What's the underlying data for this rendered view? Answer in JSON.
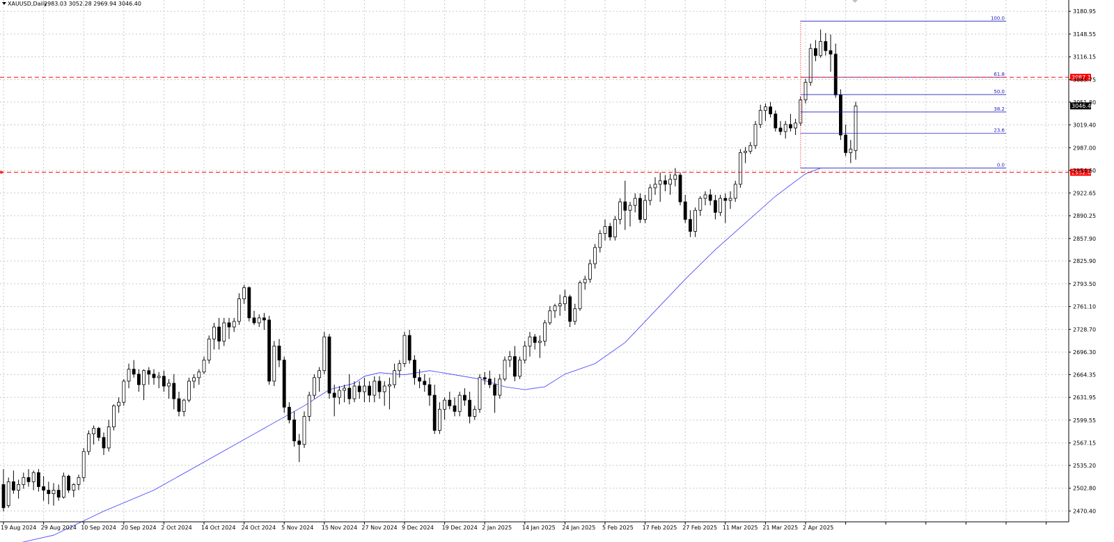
{
  "header": {
    "symbol": "XAUUSD,Daily",
    "ohlc": "2983.03 3052.28 2969.94 3046.40"
  },
  "colors": {
    "background": "#ffffff",
    "grid": "#c8c8c8",
    "bull_fill": "#ffffff",
    "bear_fill": "#000000",
    "candle_outline": "#000000",
    "moving_average": "#3c3cff",
    "fibonacci": "#2020c0",
    "support_resistance": "#ff0000",
    "current_price_tag": "#000000"
  },
  "chart_data": {
    "type": "candlestick",
    "symbol": "XAUUSD",
    "timeframe": "Daily",
    "ylim": [
      2455,
      3197
    ],
    "y_ticks": [
      3180.95,
      3148.55,
      3116.15,
      3083.75,
      3051.8,
      3019.4,
      2987.0,
      2954.6,
      2922.65,
      2890.25,
      2857.9,
      2825.9,
      2793.5,
      2761.1,
      2728.7,
      2696.3,
      2664.35,
      2631.95,
      2599.55,
      2567.15,
      2535.2,
      2502.8,
      2470.4
    ],
    "y_tick_labels": [
      "3180.95",
      "3148.55",
      "3116.15",
      "3083.75",
      "3051.80",
      "3019.40",
      "2987.00",
      "2954.60",
      "2922.65",
      "2890.25",
      "2857.90",
      "2825.90",
      "2793.50",
      "2761.10",
      "2728.70",
      "2696.30",
      "2664.35",
      "2631.95",
      "2599.55",
      "2567.15",
      "2535.20",
      "2502.80",
      "2470.40"
    ],
    "x_tick_labels": [
      {
        "index": 0,
        "label": "19 Aug 2024"
      },
      {
        "index": 8,
        "label": "29 Aug 2024"
      },
      {
        "index": 16,
        "label": "10 Sep 2024"
      },
      {
        "index": 24,
        "label": "20 Sep 2024"
      },
      {
        "index": 32,
        "label": "2 Oct 2024"
      },
      {
        "index": 40,
        "label": "14 Oct 2024"
      },
      {
        "index": 48,
        "label": "24 Oct 2024"
      },
      {
        "index": 56,
        "label": "5 Nov 2024"
      },
      {
        "index": 64,
        "label": "15 Nov 2024"
      },
      {
        "index": 72,
        "label": "27 Nov 2024"
      },
      {
        "index": 80,
        "label": "9 Dec 2024"
      },
      {
        "index": 88,
        "label": "19 Dec 2024"
      },
      {
        "index": 96,
        "label": "2 Jan 2025"
      },
      {
        "index": 104,
        "label": "14 Jan 2025"
      },
      {
        "index": 112,
        "label": "24 Jan 2025"
      },
      {
        "index": 120,
        "label": "5 Feb 2025"
      },
      {
        "index": 128,
        "label": "17 Feb 2025"
      },
      {
        "index": 136,
        "label": "27 Feb 2025"
      },
      {
        "index": 144,
        "label": "11 Mar 2025"
      },
      {
        "index": 152,
        "label": "21 Mar 2025"
      },
      {
        "index": 160,
        "label": "2 Apr 2025"
      }
    ],
    "candles": [
      [
        2508,
        2530,
        2470,
        2475
      ],
      [
        2478,
        2518,
        2475,
        2512
      ],
      [
        2512,
        2528,
        2495,
        2500
      ],
      [
        2500,
        2515,
        2488,
        2508
      ],
      [
        2508,
        2525,
        2502,
        2518
      ],
      [
        2518,
        2530,
        2505,
        2512
      ],
      [
        2512,
        2528,
        2500,
        2525
      ],
      [
        2525,
        2530,
        2498,
        2505
      ],
      [
        2505,
        2520,
        2485,
        2500
      ],
      [
        2500,
        2512,
        2480,
        2495
      ],
      [
        2495,
        2510,
        2478,
        2500
      ],
      [
        2500,
        2508,
        2485,
        2490
      ],
      [
        2490,
        2525,
        2488,
        2520
      ],
      [
        2520,
        2522,
        2496,
        2500
      ],
      [
        2500,
        2510,
        2490,
        2508
      ],
      [
        2508,
        2522,
        2500,
        2518
      ],
      [
        2518,
        2560,
        2512,
        2555
      ],
      [
        2555,
        2585,
        2550,
        2580
      ],
      [
        2580,
        2592,
        2565,
        2588
      ],
      [
        2588,
        2590,
        2570,
        2575
      ],
      [
        2575,
        2582,
        2550,
        2560
      ],
      [
        2560,
        2600,
        2555,
        2590
      ],
      [
        2590,
        2622,
        2585,
        2620
      ],
      [
        2620,
        2632,
        2610,
        2625
      ],
      [
        2625,
        2658,
        2620,
        2655
      ],
      [
        2655,
        2680,
        2645,
        2672
      ],
      [
        2672,
        2685,
        2660,
        2665
      ],
      [
        2665,
        2672,
        2640,
        2650
      ],
      [
        2650,
        2672,
        2628,
        2670
      ],
      [
        2670,
        2675,
        2650,
        2665
      ],
      [
        2665,
        2672,
        2650,
        2660
      ],
      [
        2660,
        2668,
        2645,
        2662
      ],
      [
        2662,
        2670,
        2640,
        2648
      ],
      [
        2648,
        2658,
        2630,
        2652
      ],
      [
        2652,
        2665,
        2615,
        2630
      ],
      [
        2630,
        2640,
        2605,
        2612
      ],
      [
        2612,
        2630,
        2605,
        2628
      ],
      [
        2628,
        2660,
        2625,
        2655
      ],
      [
        2655,
        2665,
        2645,
        2660
      ],
      [
        2660,
        2672,
        2650,
        2668
      ],
      [
        2668,
        2690,
        2665,
        2685
      ],
      [
        2685,
        2720,
        2680,
        2715
      ],
      [
        2715,
        2738,
        2700,
        2732
      ],
      [
        2732,
        2745,
        2700,
        2712
      ],
      [
        2712,
        2745,
        2705,
        2738
      ],
      [
        2738,
        2745,
        2715,
        2732
      ],
      [
        2732,
        2745,
        2725,
        2740
      ],
      [
        2740,
        2780,
        2735,
        2772
      ],
      [
        2772,
        2792,
        2765,
        2788
      ],
      [
        2788,
        2790,
        2740,
        2745
      ],
      [
        2745,
        2755,
        2735,
        2738
      ],
      [
        2738,
        2750,
        2732,
        2745
      ],
      [
        2745,
        2752,
        2728,
        2742
      ],
      [
        2742,
        2748,
        2650,
        2655
      ],
      [
        2655,
        2712,
        2648,
        2705
      ],
      [
        2705,
        2715,
        2675,
        2685
      ],
      [
        2685,
        2690,
        2610,
        2618
      ],
      [
        2618,
        2625,
        2595,
        2600
      ],
      [
        2600,
        2612,
        2562,
        2570
      ],
      [
        2570,
        2580,
        2540,
        2565
      ],
      [
        2565,
        2612,
        2560,
        2605
      ],
      [
        2605,
        2640,
        2598,
        2635
      ],
      [
        2635,
        2665,
        2630,
        2660
      ],
      [
        2660,
        2675,
        2640,
        2670
      ],
      [
        2670,
        2725,
        2665,
        2718
      ],
      [
        2718,
        2722,
        2630,
        2638
      ],
      [
        2638,
        2650,
        2605,
        2632
      ],
      [
        2632,
        2648,
        2622,
        2642
      ],
      [
        2642,
        2650,
        2625,
        2645
      ],
      [
        2645,
        2665,
        2622,
        2630
      ],
      [
        2630,
        2655,
        2625,
        2648
      ],
      [
        2648,
        2655,
        2630,
        2640
      ],
      [
        2640,
        2660,
        2625,
        2648
      ],
      [
        2648,
        2655,
        2625,
        2635
      ],
      [
        2635,
        2662,
        2625,
        2655
      ],
      [
        2655,
        2662,
        2630,
        2640
      ],
      [
        2640,
        2655,
        2620,
        2648
      ],
      [
        2648,
        2660,
        2615,
        2650
      ],
      [
        2650,
        2680,
        2645,
        2670
      ],
      [
        2670,
        2685,
        2660,
        2680
      ],
      [
        2680,
        2725,
        2675,
        2720
      ],
      [
        2720,
        2728,
        2680,
        2685
      ],
      [
        2685,
        2692,
        2650,
        2660
      ],
      [
        2660,
        2672,
        2645,
        2655
      ],
      [
        2655,
        2665,
        2640,
        2650
      ],
      [
        2650,
        2660,
        2620,
        2635
      ],
      [
        2635,
        2650,
        2580,
        2585
      ],
      [
        2585,
        2625,
        2580,
        2615
      ],
      [
        2615,
        2632,
        2600,
        2628
      ],
      [
        2628,
        2640,
        2615,
        2620
      ],
      [
        2620,
        2632,
        2605,
        2612
      ],
      [
        2612,
        2640,
        2605,
        2635
      ],
      [
        2635,
        2645,
        2620,
        2628
      ],
      [
        2628,
        2640,
        2595,
        2605
      ],
      [
        2605,
        2620,
        2600,
        2615
      ],
      [
        2615,
        2665,
        2610,
        2660
      ],
      [
        2660,
        2668,
        2650,
        2658
      ],
      [
        2658,
        2670,
        2645,
        2650
      ],
      [
        2650,
        2660,
        2610,
        2635
      ],
      [
        2635,
        2665,
        2630,
        2658
      ],
      [
        2658,
        2690,
        2655,
        2685
      ],
      [
        2685,
        2698,
        2675,
        2690
      ],
      [
        2690,
        2705,
        2655,
        2662
      ],
      [
        2662,
        2690,
        2658,
        2685
      ],
      [
        2685,
        2712,
        2680,
        2705
      ],
      [
        2705,
        2725,
        2690,
        2718
      ],
      [
        2718,
        2722,
        2700,
        2710
      ],
      [
        2710,
        2720,
        2688,
        2712
      ],
      [
        2712,
        2742,
        2705,
        2738
      ],
      [
        2738,
        2762,
        2735,
        2755
      ],
      [
        2755,
        2765,
        2745,
        2762
      ],
      [
        2762,
        2778,
        2748,
        2765
      ],
      [
        2765,
        2785,
        2755,
        2775
      ],
      [
        2775,
        2778,
        2732,
        2740
      ],
      [
        2740,
        2765,
        2735,
        2758
      ],
      [
        2758,
        2798,
        2755,
        2795
      ],
      [
        2795,
        2805,
        2785,
        2800
      ],
      [
        2800,
        2828,
        2795,
        2822
      ],
      [
        2822,
        2850,
        2815,
        2845
      ],
      [
        2845,
        2870,
        2838,
        2865
      ],
      [
        2865,
        2885,
        2855,
        2875
      ],
      [
        2875,
        2880,
        2855,
        2860
      ],
      [
        2860,
        2890,
        2855,
        2885
      ],
      [
        2885,
        2915,
        2878,
        2910
      ],
      [
        2910,
        2940,
        2870,
        2898
      ],
      [
        2898,
        2910,
        2875,
        2905
      ],
      [
        2905,
        2922,
        2895,
        2915
      ],
      [
        2915,
        2922,
        2880,
        2885
      ],
      [
        2885,
        2920,
        2880,
        2912
      ],
      [
        2912,
        2935,
        2905,
        2930
      ],
      [
        2930,
        2945,
        2920,
        2935
      ],
      [
        2935,
        2952,
        2910,
        2940
      ],
      [
        2940,
        2948,
        2925,
        2935
      ],
      [
        2935,
        2950,
        2920,
        2942
      ],
      [
        2942,
        2958,
        2932,
        2948
      ],
      [
        2948,
        2952,
        2905,
        2910
      ],
      [
        2910,
        2920,
        2880,
        2885
      ],
      [
        2885,
        2898,
        2860,
        2868
      ],
      [
        2868,
        2902,
        2860,
        2898
      ],
      [
        2898,
        2918,
        2890,
        2915
      ],
      [
        2915,
        2925,
        2905,
        2920
      ],
      [
        2920,
        2928,
        2905,
        2912
      ],
      [
        2912,
        2920,
        2885,
        2895
      ],
      [
        2895,
        2920,
        2890,
        2915
      ],
      [
        2915,
        2922,
        2880,
        2912
      ],
      [
        2912,
        2925,
        2900,
        2915
      ],
      [
        2915,
        2940,
        2910,
        2935
      ],
      [
        2935,
        2985,
        2930,
        2980
      ],
      [
        2980,
        2988,
        2965,
        2982
      ],
      [
        2982,
        2995,
        2978,
        2990
      ],
      [
        2990,
        3025,
        2985,
        3020
      ],
      [
        3020,
        3048,
        3015,
        3040
      ],
      [
        3040,
        3050,
        3025,
        3045
      ],
      [
        3045,
        3052,
        3030,
        3035
      ],
      [
        3035,
        3040,
        3010,
        3015
      ],
      [
        3015,
        3025,
        3005,
        3010
      ],
      [
        3010,
        3025,
        3000,
        3020
      ],
      [
        3020,
        3035,
        3010,
        3015
      ],
      [
        3015,
        3028,
        3005,
        3022
      ],
      [
        3022,
        3060,
        3018,
        3055
      ],
      [
        3055,
        3085,
        3050,
        3080
      ],
      [
        3080,
        3135,
        3075,
        3128
      ],
      [
        3128,
        3140,
        3110,
        3118
      ],
      [
        3118,
        3155,
        3115,
        3138
      ],
      [
        3138,
        3150,
        3118,
        3125
      ],
      [
        3125,
        3148,
        3095,
        3120
      ],
      [
        3120,
        3135,
        3058,
        3062
      ],
      [
        3062,
        3070,
        2998,
        3005
      ],
      [
        3005,
        3020,
        2975,
        2980
      ],
      [
        2980,
        2998,
        2965,
        2985
      ],
      [
        2983.03,
        3052.28,
        2969.94,
        3046.4
      ]
    ],
    "moving_average": {
      "name": "",
      "values": [
        [
          0,
          2420
        ],
        [
          10,
          2436
        ],
        [
          20,
          2470
        ],
        [
          30,
          2500
        ],
        [
          40,
          2540
        ],
        [
          50,
          2580
        ],
        [
          60,
          2620
        ],
        [
          65,
          2643
        ],
        [
          70,
          2652
        ],
        [
          72,
          2662
        ],
        [
          75,
          2667
        ],
        [
          80,
          2664
        ],
        [
          85,
          2670
        ],
        [
          90,
          2664
        ],
        [
          95,
          2658
        ],
        [
          100,
          2647
        ],
        [
          104,
          2643
        ],
        [
          108,
          2647
        ],
        [
          112,
          2665
        ],
        [
          118,
          2680
        ],
        [
          124,
          2710
        ],
        [
          130,
          2755
        ],
        [
          136,
          2800
        ],
        [
          142,
          2842
        ],
        [
          148,
          2880
        ],
        [
          154,
          2918
        ],
        [
          160,
          2950
        ],
        [
          163,
          2958
        ]
      ]
    },
    "fibonacci": {
      "start_index": 159,
      "end_index": 179,
      "price_high": 3167,
      "price_low": 2958,
      "levels": [
        {
          "ratio": "100.0",
          "price": 3167
        },
        {
          "ratio": "61.8",
          "price": 3087.1
        },
        {
          "ratio": "50.0",
          "price": 3062.5
        },
        {
          "ratio": "38.2",
          "price": 3037.8
        },
        {
          "ratio": "23.6",
          "price": 3007.3
        },
        {
          "ratio": "0.0",
          "price": 2958
        }
      ]
    },
    "horizontal_lines": [
      {
        "price": 3087.11,
        "label": "3087.11",
        "style": "dashed"
      },
      {
        "price": 2952.0,
        "label": "2952.00",
        "style": "dashed"
      }
    ],
    "current_price": {
      "price": 3046.4,
      "label": "3046.40"
    }
  }
}
